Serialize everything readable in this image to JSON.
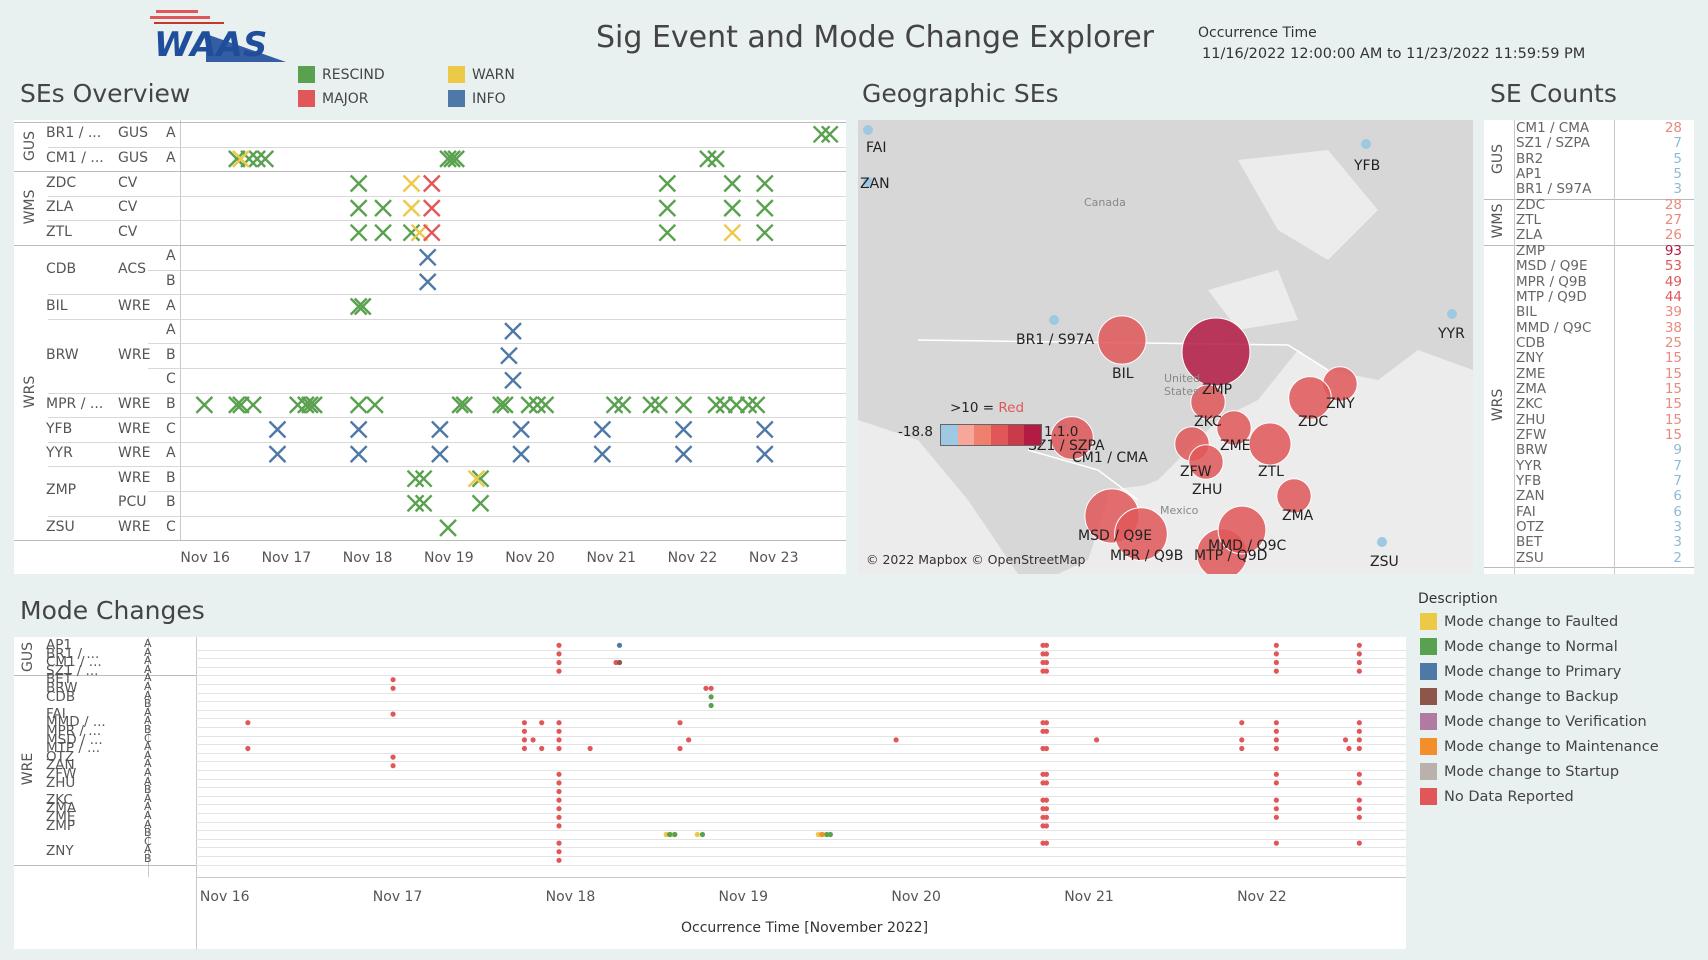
{
  "title": "Sig Event and Mode Change Explorer",
  "occurrence": {
    "label": "Occurrence Time",
    "range": "11/16/2022 12:00:00 AM to 11/23/2022 11:59:59 PM"
  },
  "logo": {
    "alt": "WAAS logo",
    "text": "WAAS"
  },
  "colors": {
    "rescind": "#59a14f",
    "major": "#e15759",
    "warn": "#edc948",
    "info": "#4e79a7",
    "darkred": "#b31b43",
    "lightblue": "#9ec9e2"
  },
  "se_overview": {
    "title": "SEs Overview",
    "legend": [
      {
        "label": "RESCIND",
        "color": "#59a14f"
      },
      {
        "label": "MAJOR",
        "color": "#e15759"
      },
      {
        "label": "WARN",
        "color": "#edc948"
      },
      {
        "label": "INFO",
        "color": "#4e79a7"
      }
    ],
    "groups": [
      "GUS",
      "WMS",
      "WRS"
    ],
    "rows": [
      {
        "group": "GUS",
        "site": "BR1 / ...",
        "type": "GUS",
        "chan": "A"
      },
      {
        "group": "GUS",
        "site": "CM1 / ...",
        "type": "GUS",
        "chan": "A"
      },
      {
        "group": "WMS",
        "site": "ZDC",
        "type": "CV",
        "chan": ""
      },
      {
        "group": "WMS",
        "site": "ZLA",
        "type": "CV",
        "chan": ""
      },
      {
        "group": "WMS",
        "site": "ZTL",
        "type": "CV",
        "chan": ""
      },
      {
        "group": "WRS",
        "site": "CDB",
        "type": "ACS",
        "chan": "A"
      },
      {
        "group": "WRS",
        "site": "",
        "type": "",
        "chan": "B"
      },
      {
        "group": "WRS",
        "site": "BIL",
        "type": "WRE",
        "chan": "A"
      },
      {
        "group": "WRS",
        "site": "BRW",
        "type": "WRE",
        "chan": "A"
      },
      {
        "group": "WRS",
        "site": "",
        "type": "",
        "chan": "B"
      },
      {
        "group": "WRS",
        "site": "",
        "type": "",
        "chan": "C"
      },
      {
        "group": "WRS",
        "site": "MPR / ...",
        "type": "WRE",
        "chan": "B"
      },
      {
        "group": "WRS",
        "site": "YFB",
        "type": "WRE",
        "chan": "C"
      },
      {
        "group": "WRS",
        "site": "YYR",
        "type": "WRE",
        "chan": "A"
      },
      {
        "group": "WRS",
        "site": "ZMP",
        "type": "WRE",
        "chan": "B"
      },
      {
        "group": "WRS",
        "site": "",
        "type": "PCU",
        "chan": "B"
      },
      {
        "group": "WRS",
        "site": "ZSU",
        "type": "WRE",
        "chan": "C"
      }
    ],
    "x_ticks": [
      "Nov 16",
      "Nov 17",
      "Nov 18",
      "Nov 19",
      "Nov 20",
      "Nov 21",
      "Nov 22",
      "Nov 23"
    ]
  },
  "chart_data": [
    {
      "type": "scatter",
      "title": "SEs Overview",
      "x_unit": "day (Nov 2022)",
      "xlim": [
        15.7,
        23.9
      ],
      "events": [
        {
          "row": 0,
          "x": [
            23.6,
            23.7
          ],
          "sev": "rescind"
        },
        {
          "row": 1,
          "x": [
            16.4,
            16.55,
            16.65,
            16.75,
            19.0,
            19.05,
            19.1,
            22.2,
            22.3
          ],
          "sev": "rescind"
        },
        {
          "row": 1,
          "x": [
            16.45
          ],
          "sev": "warn"
        },
        {
          "row": 2,
          "x": [
            17.9,
            21.7,
            22.5,
            22.9
          ],
          "sev": "rescind"
        },
        {
          "row": 2,
          "x": [
            18.55
          ],
          "sev": "warn"
        },
        {
          "row": 2,
          "x": [
            18.8
          ],
          "sev": "major"
        },
        {
          "row": 3,
          "x": [
            17.9,
            18.2,
            21.7,
            22.5,
            22.9
          ],
          "sev": "rescind"
        },
        {
          "row": 3,
          "x": [
            18.55
          ],
          "sev": "warn"
        },
        {
          "row": 3,
          "x": [
            18.8
          ],
          "sev": "major"
        },
        {
          "row": 4,
          "x": [
            17.9,
            18.2,
            18.55,
            21.7,
            22.9
          ],
          "sev": "rescind"
        },
        {
          "row": 4,
          "x": [
            18.65,
            22.5
          ],
          "sev": "warn"
        },
        {
          "row": 4,
          "x": [
            18.8
          ],
          "sev": "major"
        },
        {
          "row": 5,
          "x": [
            18.75
          ],
          "sev": "info"
        },
        {
          "row": 6,
          "x": [
            18.75
          ],
          "sev": "info"
        },
        {
          "row": 7,
          "x": [
            17.9,
            17.95
          ],
          "sev": "rescind"
        },
        {
          "row": 8,
          "x": [
            19.8
          ],
          "sev": "info"
        },
        {
          "row": 9,
          "x": [
            19.75
          ],
          "sev": "info"
        },
        {
          "row": 10,
          "x": [
            19.8
          ],
          "sev": "info"
        },
        {
          "row": 11,
          "x": [
            16.0,
            16.4,
            16.45,
            16.6,
            17.15,
            17.25,
            17.3,
            17.35,
            17.9,
            18.1,
            19.15,
            19.2,
            19.65,
            19.7,
            20.0,
            20.1,
            20.2,
            21.05,
            21.15,
            21.5,
            21.6,
            21.9,
            22.3,
            22.4,
            22.55,
            22.7,
            22.8
          ],
          "sev": "rescind"
        },
        {
          "row": 12,
          "x": [
            16.9,
            17.9,
            18.9,
            19.9,
            20.9,
            21.9,
            22.9
          ],
          "sev": "info"
        },
        {
          "row": 13,
          "x": [
            16.9,
            17.9,
            18.9,
            19.9,
            20.9,
            21.9,
            22.9
          ],
          "sev": "info"
        },
        {
          "row": 14,
          "x": [
            18.6,
            18.7,
            19.4
          ],
          "sev": "rescind"
        },
        {
          "row": 14,
          "x": [
            19.35
          ],
          "sev": "warn"
        },
        {
          "row": 15,
          "x": [
            18.6,
            18.7,
            19.4
          ],
          "sev": "rescind"
        },
        {
          "row": 16,
          "x": [
            19.0
          ],
          "sev": "rescind"
        }
      ]
    },
    {
      "type": "bar",
      "title": "SE Counts",
      "groups": [
        {
          "name": "GUS",
          "items": [
            [
              "CM1 / CMA",
              28
            ],
            [
              "SZ1 / SZPA",
              7
            ],
            [
              "BR2",
              5
            ],
            [
              "AP1",
              5
            ],
            [
              "BR1 / S97A",
              3
            ]
          ]
        },
        {
          "name": "WMS",
          "items": [
            [
              "ZDC",
              28
            ],
            [
              "ZTL",
              27
            ],
            [
              "ZLA",
              26
            ]
          ]
        },
        {
          "name": "WRS",
          "items": [
            [
              "ZMP",
              93
            ],
            [
              "MSD / Q9E",
              53
            ],
            [
              "MPR / Q9B",
              49
            ],
            [
              "MTP / Q9D",
              44
            ],
            [
              "BIL",
              39
            ],
            [
              "MMD / Q9C",
              38
            ],
            [
              "CDB",
              25
            ],
            [
              "ZNY",
              15
            ],
            [
              "ZME",
              15
            ],
            [
              "ZMA",
              15
            ],
            [
              "ZKC",
              15
            ],
            [
              "ZHU",
              15
            ],
            [
              "ZFW",
              15
            ],
            [
              "BRW",
              9
            ],
            [
              "YYR",
              7
            ],
            [
              "YFB",
              7
            ],
            [
              "ZAN",
              6
            ],
            [
              "FAI",
              6
            ],
            [
              "OTZ",
              3
            ],
            [
              "BET",
              3
            ],
            [
              "ZSU",
              2
            ]
          ]
        }
      ]
    },
    {
      "type": "scatter",
      "title": "Mode Changes",
      "xlabel": "Occurrence Time [November 2022]",
      "x_unit": "day (Nov 2022)",
      "xlim": [
        15.85,
        22.85
      ],
      "points": [
        {
          "row": 0,
          "x": [
            17.95,
            20.75,
            20.77,
            22.1,
            22.58
          ],
          "c": "nodata"
        },
        {
          "row": 0,
          "x": [
            18.3
          ],
          "c": "primary"
        },
        {
          "row": 1,
          "x": [
            17.95,
            20.75,
            20.77,
            22.1,
            22.58
          ],
          "c": "nodata"
        },
        {
          "row": 2,
          "x": [
            17.95,
            18.28,
            20.75,
            20.77,
            22.1,
            22.58
          ],
          "c": "nodata"
        },
        {
          "row": 2,
          "x": [
            18.3
          ],
          "c": "backup"
        },
        {
          "row": 3,
          "x": [
            17.95,
            20.75,
            20.77,
            22.1,
            22.58
          ],
          "c": "nodata"
        },
        {
          "row": 4,
          "x": [
            16.99
          ],
          "c": "nodata"
        },
        {
          "row": 5,
          "x": [
            16.99,
            18.8,
            18.83
          ],
          "c": "nodata"
        },
        {
          "row": 6,
          "x": [
            18.83
          ],
          "c": "normal"
        },
        {
          "row": 7,
          "x": [
            18.83
          ],
          "c": "normal"
        },
        {
          "row": 8,
          "x": [
            16.99
          ],
          "c": "nodata"
        },
        {
          "row": 9,
          "x": [
            16.15,
            17.75,
            17.85,
            17.95,
            18.65,
            20.75,
            20.77,
            21.9,
            22.1,
            22.58
          ],
          "c": "nodata"
        },
        {
          "row": 10,
          "x": [
            17.75,
            17.95,
            20.75,
            20.77,
            22.1,
            22.58
          ],
          "c": "nodata"
        },
        {
          "row": 11,
          "x": [
            17.75,
            17.8,
            17.95,
            18.7,
            19.9,
            21.06,
            21.9,
            22.1,
            22.5,
            22.58
          ],
          "c": "nodata"
        },
        {
          "row": 12,
          "x": [
            16.15,
            17.75,
            17.85,
            17.95,
            18.13,
            18.65,
            20.75,
            20.77,
            21.9,
            22.1,
            22.52,
            22.58
          ],
          "c": "nodata"
        },
        {
          "row": 13,
          "x": [
            16.99
          ],
          "c": "nodata"
        },
        {
          "row": 14,
          "x": [
            16.99
          ],
          "c": "nodata"
        },
        {
          "row": 15,
          "x": [
            17.95,
            20.75,
            20.77,
            22.1,
            22.58
          ],
          "c": "nodata"
        },
        {
          "row": 16,
          "x": [
            17.95,
            20.75,
            20.77,
            22.1,
            22.58
          ],
          "c": "nodata"
        },
        {
          "row": 17,
          "x": [
            17.95
          ],
          "c": "nodata"
        },
        {
          "row": 18,
          "x": [
            17.95,
            20.75,
            20.77,
            22.1,
            22.58
          ],
          "c": "nodata"
        },
        {
          "row": 19,
          "x": [
            17.95,
            20.75,
            20.77,
            22.1,
            22.58
          ],
          "c": "nodata"
        },
        {
          "row": 20,
          "x": [
            17.95,
            20.75,
            20.77,
            22.1,
            22.58
          ],
          "c": "nodata"
        },
        {
          "row": 21,
          "x": [
            17.95,
            20.75,
            20.77
          ],
          "c": "nodata"
        },
        {
          "row": 22,
          "x": [
            18.57,
            18.6,
            18.75,
            19.45,
            19.48
          ],
          "c": "faulted"
        },
        {
          "row": 22,
          "x": [
            18.59,
            18.62,
            18.78,
            19.5,
            19.52
          ],
          "c": "normal"
        },
        {
          "row": 22,
          "x": [
            19.47
          ],
          "c": "maintenance"
        },
        {
          "row": 23,
          "x": [
            17.95,
            20.75,
            20.77,
            22.1,
            22.58
          ],
          "c": "nodata"
        },
        {
          "row": 24,
          "x": [
            17.95
          ],
          "c": "nodata"
        },
        {
          "row": 25,
          "x": [
            17.95
          ],
          "c": "nodata"
        }
      ]
    }
  ],
  "geo": {
    "title": "Geographic SEs",
    "attribution": "© 2022 Mapbox © OpenStreetMap",
    "country_labels": [
      "Canada",
      "United States",
      "Mexico"
    ],
    "scale_title": ">10 = ",
    "scale_red": "Red",
    "scale_min": "-18.8",
    "scale_max": "1.1.0",
    "sites": [
      {
        "label": "FAI",
        "value": 6
      },
      {
        "label": "ZAN",
        "value": 6
      },
      {
        "label": "YFB",
        "value": 7
      },
      {
        "label": "YYR",
        "value": 7
      },
      {
        "label": "ZSU",
        "value": 2
      },
      {
        "label": "BR1 / S97A",
        "value": 3
      },
      {
        "label": "BIL",
        "value": 39
      },
      {
        "label": "ZMP",
        "value": 93
      },
      {
        "label": "ZKC",
        "value": 15
      },
      {
        "label": "ZME",
        "value": 15
      },
      {
        "label": "ZNY",
        "value": 15
      },
      {
        "label": "ZDC",
        "value": 28
      },
      {
        "label": "ZTL",
        "value": 27
      },
      {
        "label": "ZFW",
        "value": 15
      },
      {
        "label": "ZHU",
        "value": 15
      },
      {
        "label": "ZMA",
        "value": 15
      },
      {
        "label": "SZ1 / SZPA",
        "value": 7
      },
      {
        "label": "CM1 / CMA",
        "value": 28
      },
      {
        "label": "MSD / Q9E",
        "value": 53
      },
      {
        "label": "MPR / Q9B",
        "value": 49
      },
      {
        "label": "MTP / Q9D",
        "value": 44
      },
      {
        "label": "MMD / Q9C",
        "value": 38
      }
    ]
  },
  "counts": {
    "title": "SE Counts"
  },
  "mode_changes": {
    "title": "Mode Changes",
    "groups": [
      "GUS",
      "WRE"
    ],
    "rows": [
      {
        "site": "AP1",
        "chan": "A"
      },
      {
        "site": "BR1 / ...",
        "chan": "A"
      },
      {
        "site": "CM1 / ...",
        "chan": "A"
      },
      {
        "site": "SZ1 / ...",
        "chan": "A"
      },
      {
        "site": "BET",
        "chan": "A"
      },
      {
        "site": "BRW",
        "chan": "A"
      },
      {
        "site": "CDB",
        "chan": "A"
      },
      {
        "site": "",
        "chan": "B"
      },
      {
        "site": "FAI",
        "chan": "A"
      },
      {
        "site": "MMD / ...",
        "chan": "A"
      },
      {
        "site": "MPR / ...",
        "chan": "B"
      },
      {
        "site": "MSD / ...",
        "chan": "C"
      },
      {
        "site": "MTP / ...",
        "chan": "A"
      },
      {
        "site": "OTZ",
        "chan": "A"
      },
      {
        "site": "ZAN",
        "chan": "A"
      },
      {
        "site": "ZFW",
        "chan": "A"
      },
      {
        "site": "ZHU",
        "chan": "A"
      },
      {
        "site": "",
        "chan": "B"
      },
      {
        "site": "ZKC",
        "chan": "A"
      },
      {
        "site": "ZMA",
        "chan": "A"
      },
      {
        "site": "ZME",
        "chan": "A"
      },
      {
        "site": "ZMP",
        "chan": "A"
      },
      {
        "site": "",
        "chan": "B"
      },
      {
        "site": "",
        "chan": "C"
      },
      {
        "site": "ZNY",
        "chan": "A"
      },
      {
        "site": "",
        "chan": "B"
      }
    ],
    "x_ticks": [
      "Nov 16",
      "Nov 17",
      "Nov 18",
      "Nov 19",
      "Nov 20",
      "Nov 21",
      "Nov 22"
    ],
    "xlabel": "Occurrence Time [November 2022]"
  },
  "description": {
    "title": "Description",
    "items": [
      {
        "label": "Mode change to Faulted",
        "color": "#edc948"
      },
      {
        "label": "Mode change to Normal",
        "color": "#59a14f"
      },
      {
        "label": "Mode change to Primary",
        "color": "#4e79a7"
      },
      {
        "label": "Mode change to Backup",
        "color": "#8c564b"
      },
      {
        "label": "Mode change to Verification",
        "color": "#b07aa1"
      },
      {
        "label": "Mode change to Maintenance",
        "color": "#f28e2b"
      },
      {
        "label": "Mode change to Startup",
        "color": "#bab0ac"
      },
      {
        "label": "No Data Reported",
        "color": "#e15759"
      }
    ]
  }
}
